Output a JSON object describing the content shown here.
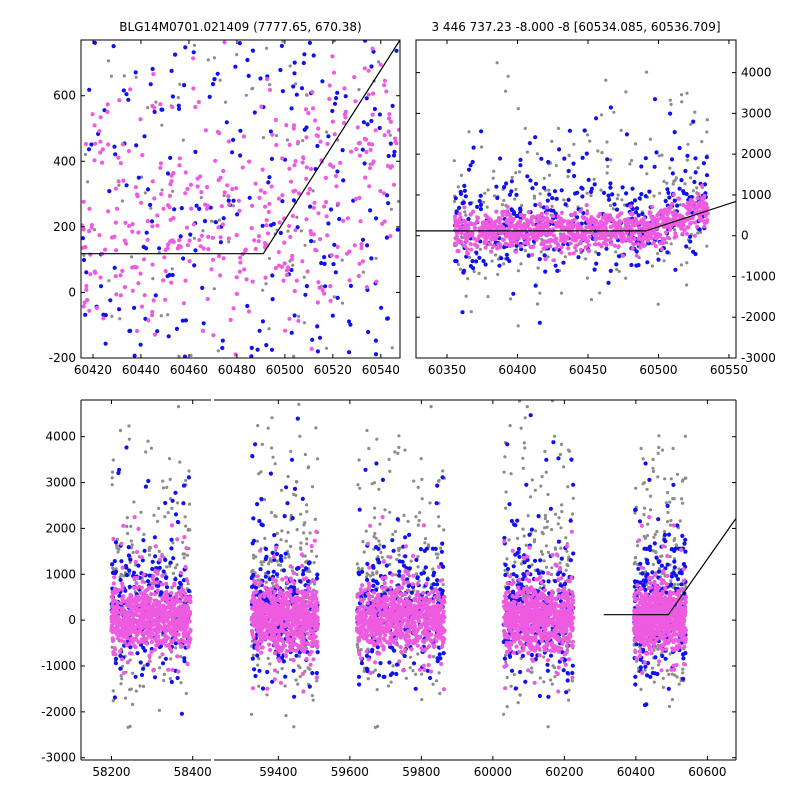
{
  "colors": {
    "grey": "#8c8c8c",
    "blue": "#1010f0",
    "pink": "#ee5be0",
    "axis": "#000000",
    "model": "#000000"
  },
  "chart_data": [
    {
      "type": "scatter",
      "title": "BLG14M0701.021409 (7777.65, 670.38)",
      "xlim": [
        60415,
        60548
      ],
      "ylim": [
        -200,
        770
      ],
      "xticks": [
        60420,
        60440,
        60460,
        60480,
        60500,
        60520,
        60540
      ],
      "yticks": [
        -200,
        0,
        200,
        400,
        600
      ],
      "ytick_side": "left",
      "model_line": {
        "x": [
          60415,
          60491,
          60548
        ],
        "y": [
          118,
          118,
          770
        ]
      }
    },
    {
      "type": "scatter",
      "title": "3 446 737.23 -8.000 -8 [60534.085, 60536.709]",
      "xlim": [
        60328,
        60555
      ],
      "ylim": [
        -3000,
        4800
      ],
      "xticks": [
        60350,
        60400,
        60450,
        60500,
        60550
      ],
      "yticks": [
        -3000,
        -2000,
        -1000,
        0,
        1000,
        2000,
        3000,
        4000
      ],
      "ytick_side": "right",
      "model_line": {
        "x": [
          60328,
          60491,
          60555
        ],
        "y": [
          118,
          118,
          840
        ]
      }
    },
    {
      "type": "scatter",
      "title": "",
      "broken_x_axis": true,
      "segments": [
        {
          "xlim": [
            58125,
            58445
          ],
          "xticks": [
            58200,
            58400
          ]
        },
        {
          "xlim": [
            59220,
            60680
          ],
          "xticks": [
            59400,
            59600,
            59800,
            60000,
            60200,
            60400,
            60600
          ]
        }
      ],
      "ylim": [
        -3050,
        4800
      ],
      "yticks": [
        -3000,
        -2000,
        -1000,
        0,
        1000,
        2000,
        3000,
        4000
      ],
      "ytick_side": "left",
      "model_line": {
        "x": [
          60310,
          60491,
          60680
        ],
        "y": [
          118,
          118,
          2220
        ]
      }
    }
  ]
}
